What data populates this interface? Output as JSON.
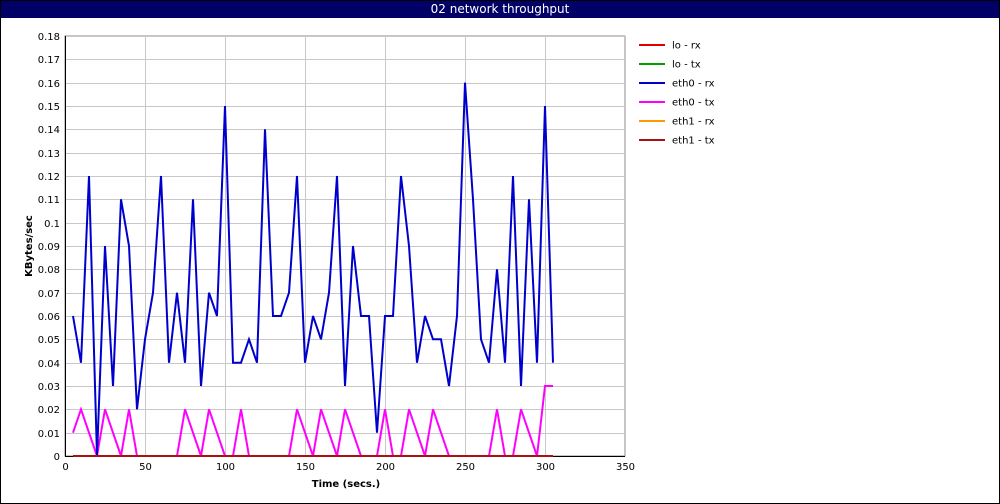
{
  "window": {
    "title": "02 network throughput"
  },
  "chart_data": {
    "type": "line",
    "title": "02 network throughput",
    "xlabel": "Time (secs.)",
    "ylabel": "KBytes/sec",
    "xlim": [
      0,
      350
    ],
    "ylim": [
      0,
      0.18
    ],
    "xticks": [
      0,
      50,
      100,
      150,
      200,
      250,
      300,
      350
    ],
    "yticks": [
      0,
      0.01,
      0.02,
      0.03,
      0.04,
      0.05,
      0.06,
      0.07,
      0.08,
      0.09,
      0.1,
      0.11,
      0.12,
      0.13,
      0.14,
      0.15,
      0.16,
      0.17,
      0.18
    ],
    "grid": true,
    "legend_position": "right",
    "series": [
      {
        "name": "lo - rx",
        "color": "#e00000",
        "x": [
          5,
          305
        ],
        "y": [
          0,
          0
        ]
      },
      {
        "name": "lo - tx",
        "color": "#00a000",
        "x": [
          5,
          305
        ],
        "y": [
          0,
          0
        ]
      },
      {
        "name": "eth0 - rx",
        "color": "#0000cc",
        "x": [
          5,
          10,
          15,
          20,
          25,
          30,
          35,
          40,
          45,
          50,
          55,
          60,
          65,
          70,
          75,
          80,
          85,
          90,
          95,
          100,
          105,
          110,
          115,
          120,
          125,
          130,
          135,
          140,
          145,
          150,
          155,
          160,
          165,
          170,
          175,
          180,
          185,
          190,
          195,
          200,
          205,
          210,
          215,
          220,
          225,
          230,
          235,
          240,
          245,
          250,
          255,
          260,
          265,
          270,
          275,
          280,
          285,
          290,
          295,
          300,
          305
        ],
        "y": [
          0.06,
          0.04,
          0.12,
          0,
          0.09,
          0.03,
          0.11,
          0.09,
          0.02,
          0.05,
          0.07,
          0.12,
          0.04,
          0.07,
          0.04,
          0.11,
          0.03,
          0.07,
          0.06,
          0.15,
          0.04,
          0.04,
          0.05,
          0.04,
          0.14,
          0.06,
          0.06,
          0.07,
          0.12,
          0.04,
          0.06,
          0.05,
          0.07,
          0.12,
          0.03,
          0.09,
          0.06,
          0.06,
          0.01,
          0.06,
          0.06,
          0.12,
          0.09,
          0.04,
          0.06,
          0.05,
          0.05,
          0.03,
          0.06,
          0.16,
          0.11,
          0.05,
          0.04,
          0.08,
          0.04,
          0.12,
          0.03,
          0.11,
          0.04,
          0.15,
          0.04
        ]
      },
      {
        "name": "eth0 - tx",
        "color": "#ff00ff",
        "x": [
          5,
          10,
          15,
          20,
          25,
          30,
          35,
          40,
          45,
          50,
          55,
          60,
          65,
          70,
          75,
          80,
          85,
          90,
          95,
          100,
          105,
          110,
          115,
          120,
          125,
          130,
          135,
          140,
          145,
          150,
          155,
          160,
          165,
          170,
          175,
          180,
          185,
          190,
          195,
          200,
          205,
          210,
          215,
          220,
          225,
          230,
          235,
          240,
          245,
          250,
          255,
          260,
          265,
          270,
          275,
          280,
          285,
          290,
          295,
          300,
          305
        ],
        "y": [
          0.01,
          0.02,
          0.01,
          0,
          0.02,
          0.01,
          0,
          0.02,
          0,
          0,
          0,
          0,
          0,
          0,
          0.02,
          0.01,
          0,
          0.02,
          0.01,
          0,
          0,
          0.02,
          0,
          0,
          0,
          0,
          0,
          0,
          0.02,
          0.01,
          0,
          0.02,
          0.01,
          0,
          0.02,
          0.01,
          0,
          0,
          0,
          0.02,
          0,
          0,
          0.02,
          0.01,
          0,
          0.02,
          0.01,
          0,
          0,
          0,
          0,
          0,
          0,
          0.02,
          0,
          0,
          0.02,
          0.01,
          0,
          0.03,
          0.03
        ]
      },
      {
        "name": "eth1 - rx",
        "color": "#ff9900",
        "x": [
          5,
          305
        ],
        "y": [
          0,
          0
        ]
      },
      {
        "name": "eth1 - tx",
        "color": "#aa1111",
        "x": [
          5,
          305
        ],
        "y": [
          0,
          0
        ]
      }
    ]
  }
}
